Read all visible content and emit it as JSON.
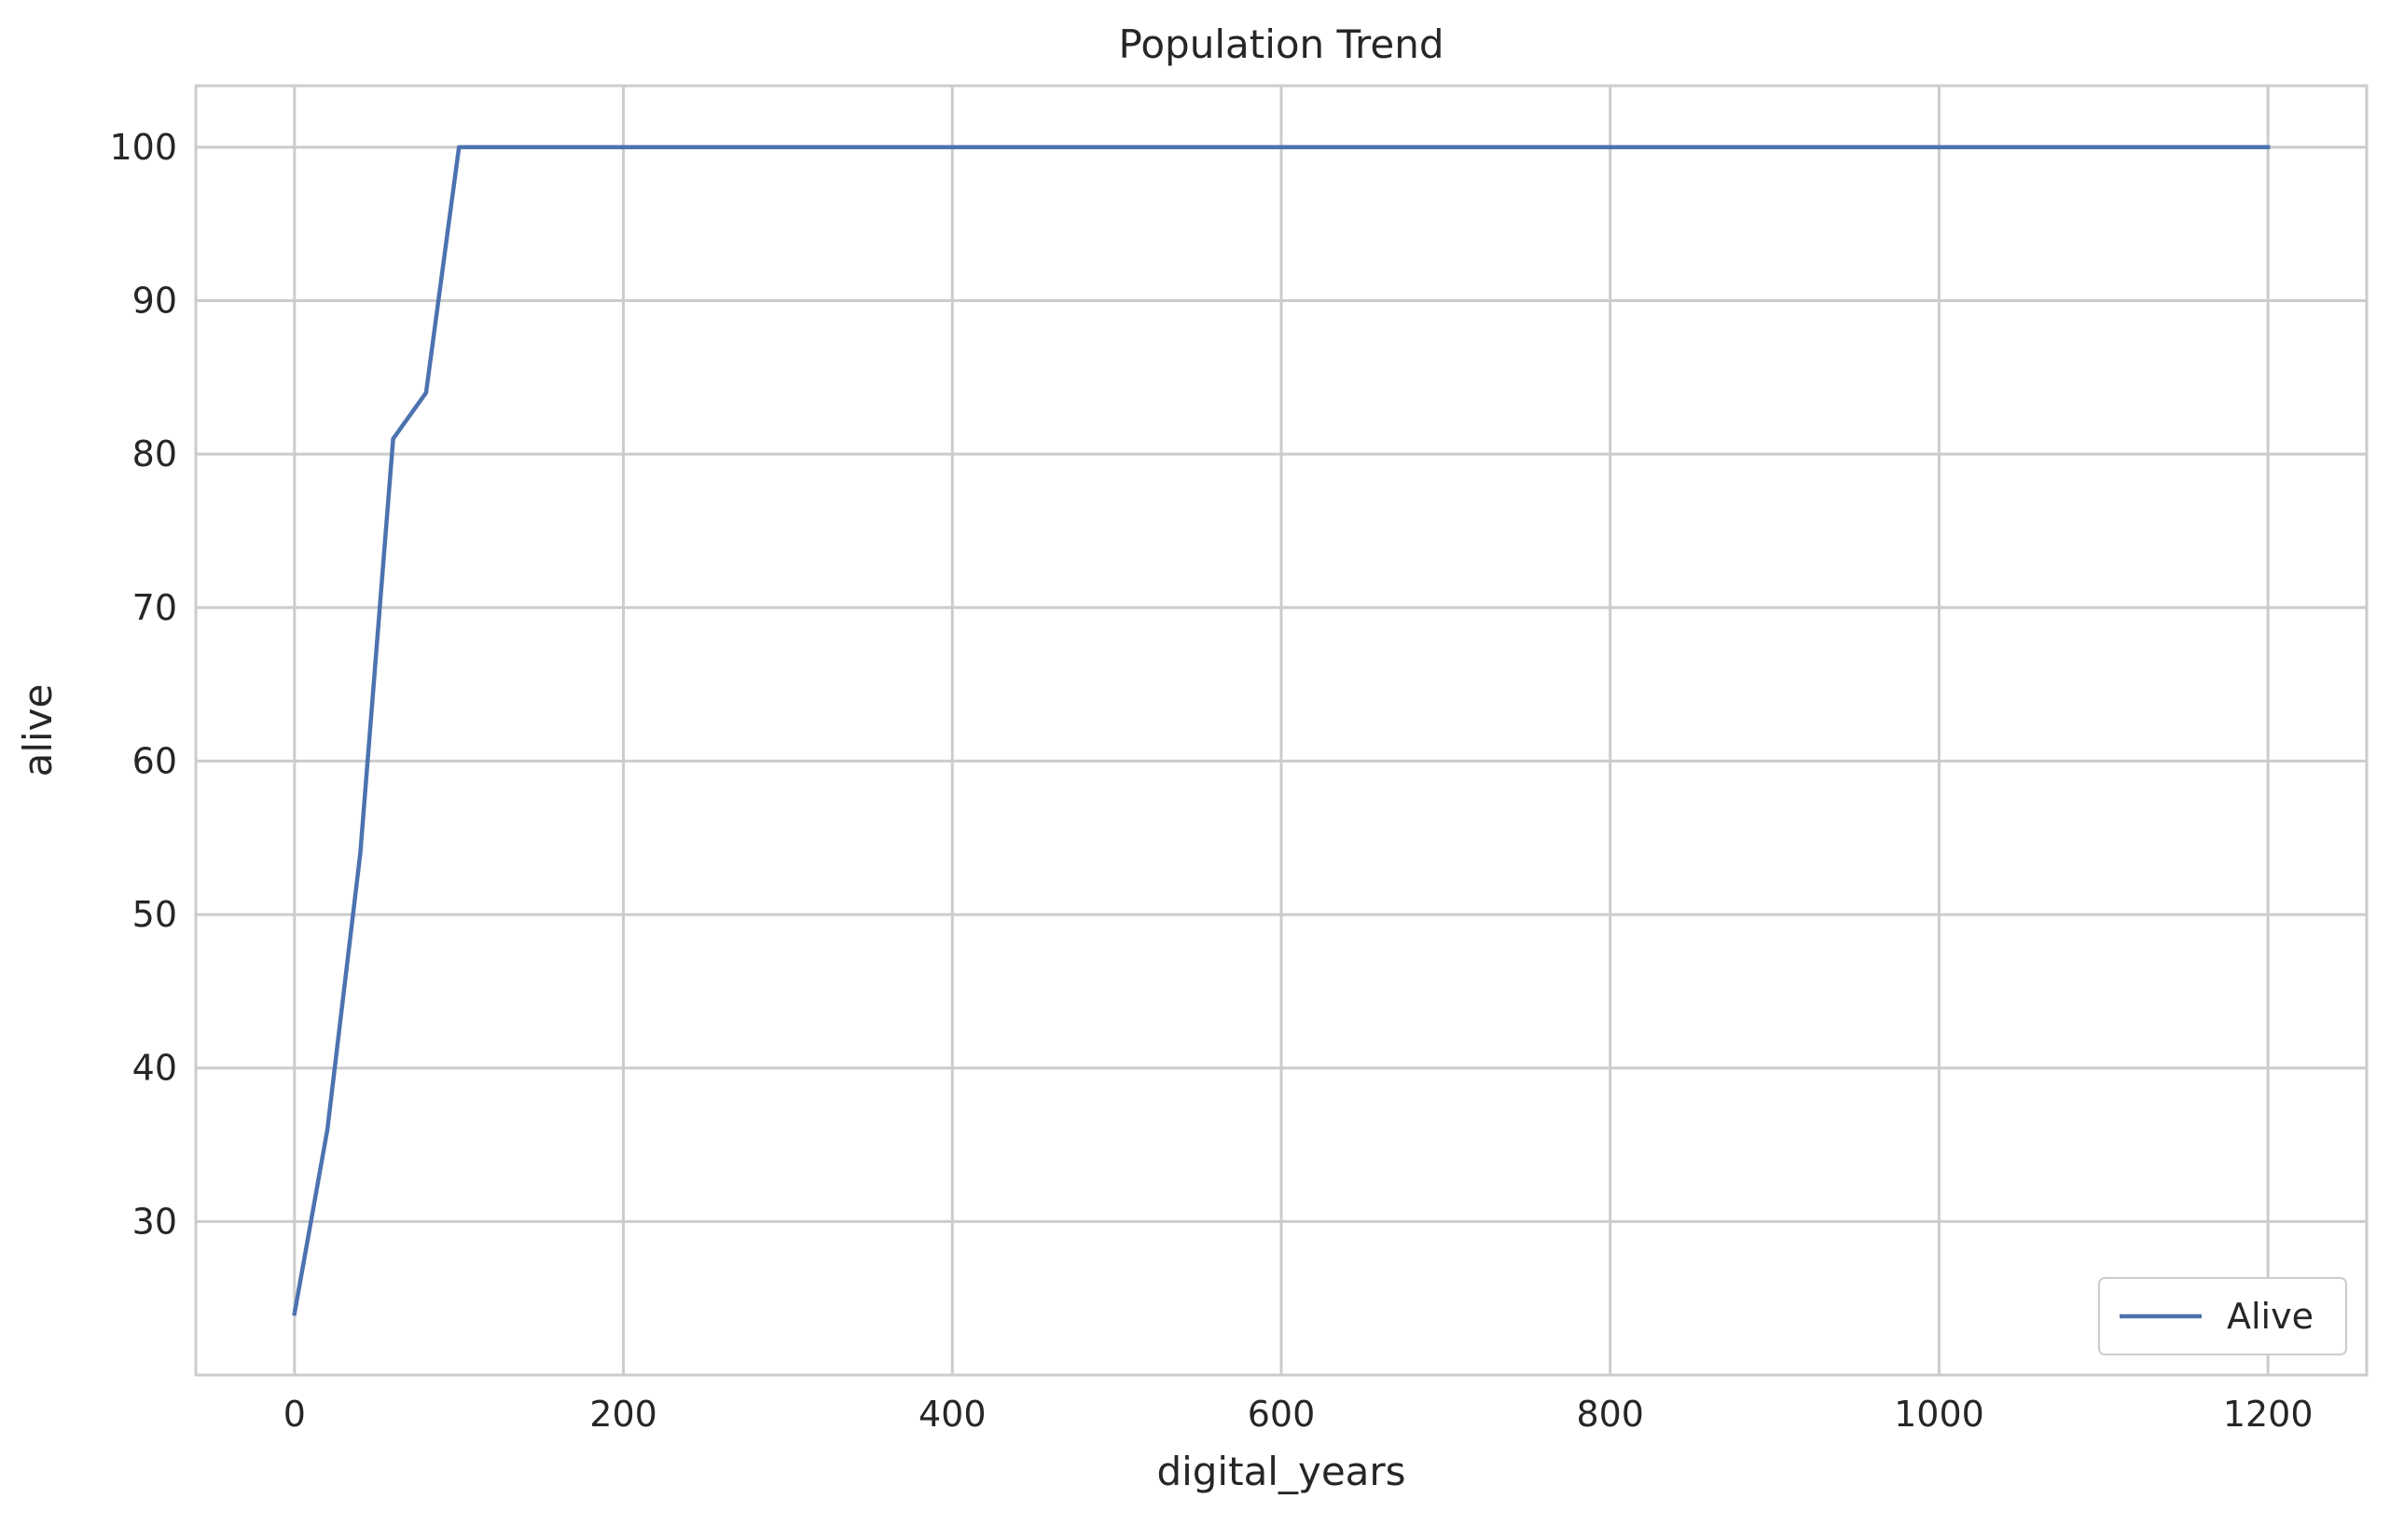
{
  "chart_data": {
    "type": "line",
    "title": "Population Trend",
    "xlabel": "digital_years",
    "ylabel": "alive",
    "xlim": [
      -60,
      1260
    ],
    "ylim": [
      20,
      104
    ],
    "xticks": [
      0,
      200,
      400,
      600,
      800,
      1000,
      1200
    ],
    "yticks": [
      30,
      40,
      50,
      60,
      70,
      80,
      90,
      100
    ],
    "grid": true,
    "legend_position": "lower-right",
    "series": [
      {
        "name": "Alive",
        "color": "#4c72b0",
        "x": [
          0,
          20,
          40,
          60,
          80,
          100,
          200,
          300,
          400,
          500,
          600,
          700,
          800,
          900,
          1000,
          1100,
          1200
        ],
        "y": [
          24,
          36,
          54,
          81,
          84,
          100,
          100,
          100,
          100,
          100,
          100,
          100,
          100,
          100,
          100,
          100,
          100
        ]
      }
    ]
  }
}
